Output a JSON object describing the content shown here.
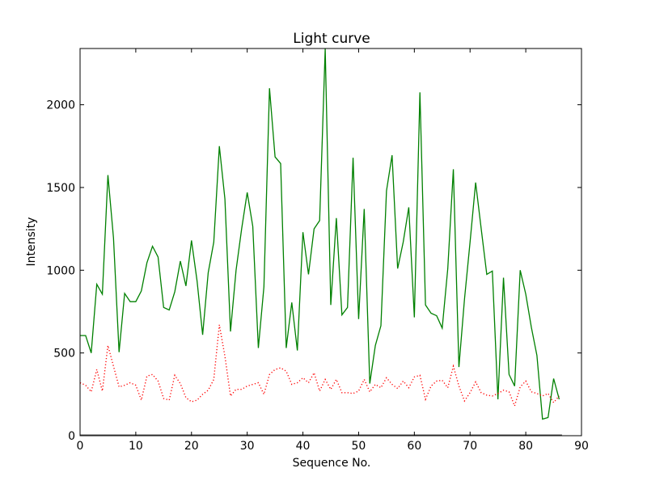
{
  "chart_data": {
    "type": "line",
    "title": "Light curve",
    "xlabel": "Sequence No.",
    "ylabel": "Intensity",
    "xlim": [
      0,
      90
    ],
    "ylim": [
      0,
      2340
    ],
    "xticks": [
      0,
      10,
      20,
      30,
      40,
      50,
      60,
      70,
      80,
      90
    ],
    "yticks": [
      0,
      500,
      1000,
      1500,
      2000
    ],
    "grid": false,
    "series": [
      {
        "color": "#008000",
        "style": "solid",
        "x": [
          0,
          1,
          2,
          3,
          4,
          5,
          6,
          7,
          8,
          9,
          10,
          11,
          12,
          13,
          14,
          15,
          16,
          17,
          18,
          19,
          20,
          21,
          22,
          23,
          24,
          25,
          26,
          27,
          28,
          29,
          30,
          31,
          32,
          33,
          34,
          35,
          36,
          37,
          38,
          39,
          40,
          41,
          42,
          43,
          44,
          45,
          46,
          47,
          48,
          49,
          50,
          51,
          52,
          53,
          54,
          55,
          56,
          57,
          58,
          59,
          60,
          61,
          62,
          63,
          64,
          65,
          66,
          67,
          68,
          69,
          70,
          71,
          72,
          73,
          74,
          75,
          76,
          77,
          78,
          79,
          80,
          81,
          82,
          83,
          84,
          85,
          86
        ],
        "values": [
          605,
          605,
          500,
          915,
          855,
          1575,
          1195,
          505,
          860,
          810,
          810,
          875,
          1045,
          1145,
          1080,
          775,
          760,
          870,
          1055,
          905,
          1180,
          935,
          610,
          985,
          1170,
          1750,
          1430,
          630,
          1000,
          1250,
          1470,
          1265,
          530,
          900,
          2100,
          1685,
          1645,
          530,
          805,
          515,
          1230,
          975,
          1250,
          1300,
          2340,
          790,
          1315,
          730,
          775,
          1680,
          705,
          1370,
          315,
          545,
          665,
          1480,
          1695,
          1010,
          1170,
          1380,
          715,
          2075,
          790,
          740,
          725,
          650,
          1010,
          1610,
          415,
          825,
          1170,
          1530,
          1250,
          975,
          995,
          220,
          955,
          370,
          300,
          1000,
          855,
          655,
          485,
          100,
          110,
          345,
          220
        ]
      },
      {
        "color": "#ff0000",
        "style": "dotted",
        "x": [
          0,
          1,
          2,
          3,
          4,
          5,
          6,
          7,
          8,
          9,
          10,
          11,
          12,
          13,
          14,
          15,
          16,
          17,
          18,
          19,
          20,
          21,
          22,
          23,
          24,
          25,
          26,
          27,
          28,
          29,
          30,
          31,
          32,
          33,
          34,
          35,
          36,
          37,
          38,
          39,
          40,
          41,
          42,
          43,
          44,
          45,
          46,
          47,
          48,
          49,
          50,
          51,
          52,
          53,
          54,
          55,
          56,
          57,
          58,
          59,
          60,
          61,
          62,
          63,
          64,
          65,
          66,
          67,
          68,
          69,
          70,
          71,
          72,
          73,
          74,
          75,
          76,
          77,
          78,
          79,
          80,
          81,
          82,
          83,
          84,
          85,
          86
        ],
        "values": [
          320,
          305,
          265,
          400,
          270,
          545,
          420,
          295,
          305,
          320,
          305,
          215,
          360,
          370,
          330,
          225,
          215,
          365,
          315,
          230,
          205,
          215,
          250,
          275,
          340,
          670,
          480,
          240,
          280,
          280,
          300,
          310,
          320,
          250,
          370,
          400,
          410,
          390,
          310,
          320,
          350,
          320,
          380,
          270,
          340,
          280,
          340,
          260,
          260,
          255,
          270,
          340,
          265,
          310,
          290,
          350,
          310,
          285,
          330,
          290,
          355,
          365,
          220,
          300,
          330,
          335,
          290,
          420,
          300,
          210,
          260,
          325,
          260,
          245,
          240,
          255,
          275,
          265,
          180,
          295,
          330,
          265,
          255,
          240,
          255,
          200,
          240
        ]
      }
    ]
  }
}
